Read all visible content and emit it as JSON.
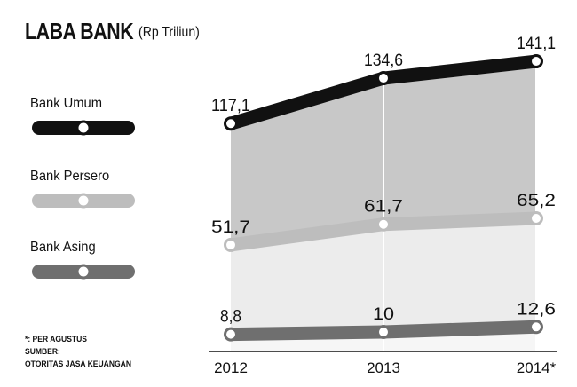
{
  "header": {
    "title": "LABA BANK",
    "unit": "(Rp Triliun)"
  },
  "footnote": {
    "line1": "*: PER AGUSTUS",
    "line2": "SUMBER:",
    "line3": "OTORITAS JASA KEUANGAN"
  },
  "chart_data": {
    "type": "line",
    "title": "LABA BANK",
    "subtitle": "(Rp Triliun)",
    "categories": [
      "2012",
      "2013",
      "2014*"
    ],
    "series": [
      {
        "name": "Bank Umum",
        "values": [
          117.1,
          134.6,
          141.1
        ],
        "labels": [
          "117,1",
          "134,6",
          "141,1"
        ],
        "color": "#111111",
        "fill": "#c8c8c8"
      },
      {
        "name": "Bank Persero",
        "values": [
          51.7,
          61.7,
          65.2
        ],
        "labels": [
          "51,7",
          "61,7",
          "65,2"
        ],
        "color": "#bdbdbd",
        "fill": "#ececec"
      },
      {
        "name": "Bank Asing",
        "values": [
          8.8,
          10,
          12.6
        ],
        "labels": [
          "8,8",
          "10",
          "12,6"
        ],
        "color": "#6f6f6f",
        "fill": "#f6f6f6"
      }
    ],
    "legend_position": "left",
    "grid": "vertical"
  }
}
